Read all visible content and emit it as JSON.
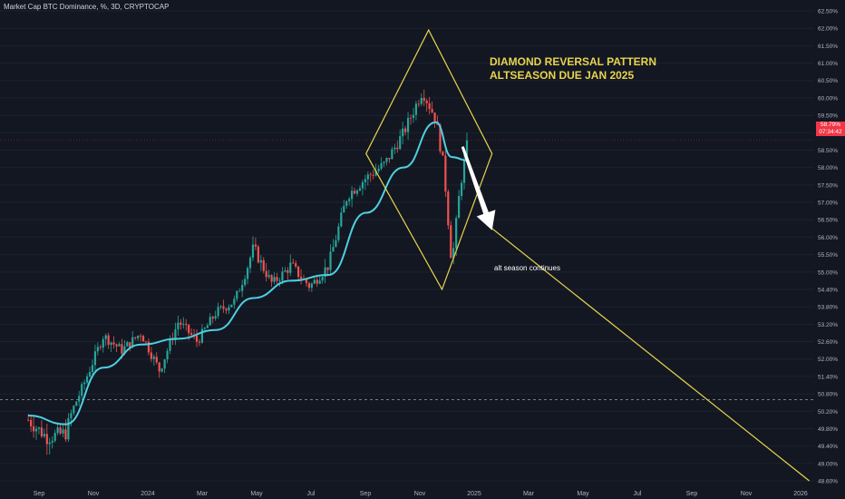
{
  "header": {
    "title": "Market Cap BTC Dominance, %, 3D, CRYPTOCAP"
  },
  "price_badge": {
    "value": "58.79%",
    "timer": "07:34:42"
  },
  "annotations": {
    "pattern_line1": "DIAMOND REVERSAL PATTERN",
    "pattern_line2": "ALTSEASON DUE JAN 2025",
    "note": "alt season continues"
  },
  "colors": {
    "background": "#131722",
    "up": "#26a69a",
    "down": "#ef5350",
    "ma": "#4dd0e1",
    "drawing": "#e8d44d",
    "arrow": "#ffffff",
    "grid_text": "#b2b5be"
  },
  "chart_data": {
    "type": "candlestick",
    "title": "Market Cap BTC Dominance, %, 3D, CRYPTOCAP",
    "y_ticks": [
      "62.50%",
      "62.00%",
      "61.50%",
      "61.00%",
      "60.50%",
      "60.00%",
      "59.50%",
      "59.00%",
      "58.50%",
      "58.00%",
      "57.50%",
      "57.00%",
      "56.50%",
      "56.00%",
      "55.50%",
      "55.00%",
      "54.40%",
      "53.80%",
      "53.20%",
      "52.60%",
      "52.00%",
      "51.40%",
      "50.80%",
      "50.20%",
      "49.80%",
      "49.40%",
      "49.00%",
      "48.60%"
    ],
    "x_ticks": [
      "Sep",
      "Nov",
      "2024",
      "Mar",
      "May",
      "Jul",
      "Sep",
      "Nov",
      "2025",
      "Mar",
      "May",
      "Jul",
      "Sep",
      "Nov",
      "2026"
    ],
    "ylim": [
      48.6,
      62.5
    ],
    "current_value": 58.79,
    "horizontal_levels": [
      50.6,
      58.79
    ],
    "close_path": [
      {
        "date": "2023-08-20",
        "value": 50.0
      },
      {
        "date": "2023-09-10",
        "value": 49.6
      },
      {
        "date": "2023-10-01",
        "value": 49.7
      },
      {
        "date": "2023-10-22",
        "value": 51.2
      },
      {
        "date": "2023-11-12",
        "value": 52.8
      },
      {
        "date": "2023-12-03",
        "value": 52.3
      },
      {
        "date": "2023-12-24",
        "value": 52.9
      },
      {
        "date": "2024-01-14",
        "value": 51.6
      },
      {
        "date": "2024-02-04",
        "value": 53.3
      },
      {
        "date": "2024-02-25",
        "value": 52.6
      },
      {
        "date": "2024-03-17",
        "value": 53.6
      },
      {
        "date": "2024-04-07",
        "value": 54.0
      },
      {
        "date": "2024-04-28",
        "value": 55.7
      },
      {
        "date": "2024-05-19",
        "value": 54.6
      },
      {
        "date": "2024-06-09",
        "value": 55.2
      },
      {
        "date": "2024-06-30",
        "value": 54.5
      },
      {
        "date": "2024-07-21",
        "value": 55.2
      },
      {
        "date": "2024-08-11",
        "value": 57.2
      },
      {
        "date": "2024-09-01",
        "value": 57.7
      },
      {
        "date": "2024-09-22",
        "value": 58.1
      },
      {
        "date": "2024-10-13",
        "value": 59.0
      },
      {
        "date": "2024-11-03",
        "value": 60.2
      },
      {
        "date": "2024-11-18",
        "value": 59.4
      },
      {
        "date": "2024-11-27",
        "value": 58.0
      },
      {
        "date": "2024-12-06",
        "value": 55.2
      },
      {
        "date": "2024-12-15",
        "value": 57.4
      },
      {
        "date": "2024-12-24",
        "value": 58.79
      }
    ],
    "moving_average": [
      {
        "date": "2023-08-20",
        "value": 50.1
      },
      {
        "date": "2023-10-01",
        "value": 49.9
      },
      {
        "date": "2023-11-12",
        "value": 51.7
      },
      {
        "date": "2023-12-24",
        "value": 52.5
      },
      {
        "date": "2024-02-04",
        "value": 52.7
      },
      {
        "date": "2024-03-17",
        "value": 53.0
      },
      {
        "date": "2024-04-28",
        "value": 54.1
      },
      {
        "date": "2024-06-09",
        "value": 54.7
      },
      {
        "date": "2024-07-21",
        "value": 54.9
      },
      {
        "date": "2024-09-01",
        "value": 56.7
      },
      {
        "date": "2024-10-13",
        "value": 58.0
      },
      {
        "date": "2024-11-18",
        "value": 59.3
      },
      {
        "date": "2024-12-06",
        "value": 58.3
      },
      {
        "date": "2024-12-24",
        "value": 58.2
      }
    ],
    "diamond": [
      {
        "date": "2024-09-01",
        "value": 58.4
      },
      {
        "date": "2024-11-10",
        "value": 61.95
      },
      {
        "date": "2025-01-20",
        "value": 58.4
      },
      {
        "date": "2024-11-25",
        "value": 54.4
      }
    ],
    "projection_line": [
      {
        "date": "2025-01-20",
        "value": 56.25
      },
      {
        "date": "2026-01-10",
        "value": 48.6
      }
    ],
    "arrow": [
      {
        "date": "2024-12-18",
        "value": 58.6
      },
      {
        "date": "2025-01-20",
        "value": 56.2
      }
    ]
  }
}
